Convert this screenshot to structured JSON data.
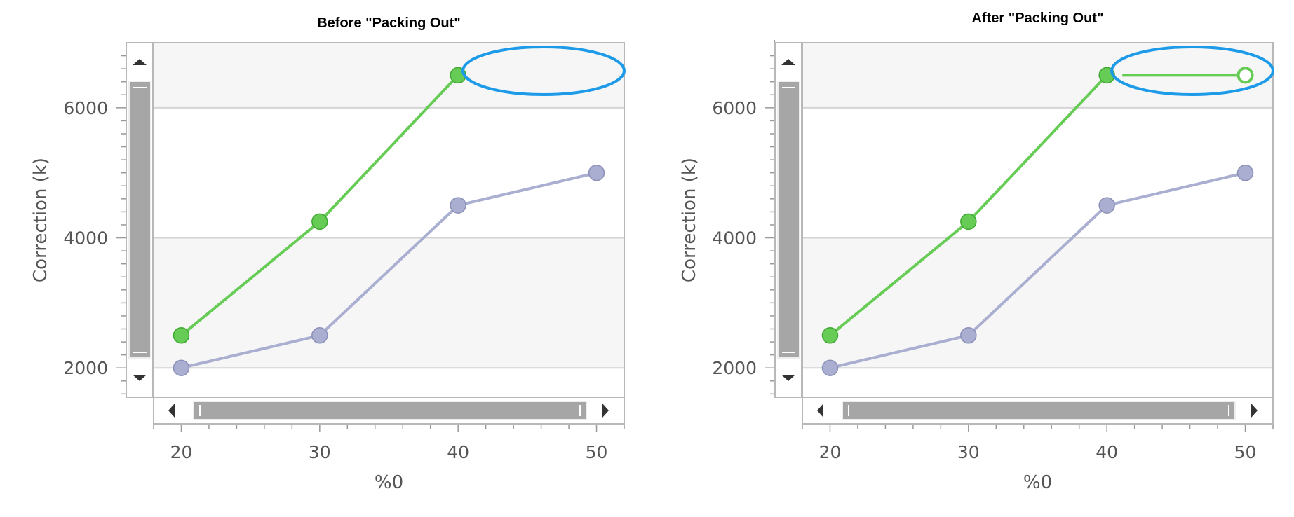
{
  "chart_data": [
    {
      "type": "line",
      "title": "Before \"Packing Out\"",
      "xlabel": "%0",
      "ylabel": "Correction (k)",
      "xlim": [
        18,
        52
      ],
      "ylim": [
        1550,
        7000
      ],
      "x_ticks": [
        20,
        30,
        40,
        50
      ],
      "y_ticks": [
        2000,
        4000,
        6000
      ],
      "grid": "horizontal",
      "series": [
        {
          "color": "#66cc55",
          "x": [
            20,
            30,
            40
          ],
          "y": [
            2500,
            4250,
            6500
          ]
        },
        {
          "color": "#aaaed0",
          "x": [
            20,
            30,
            40,
            50
          ],
          "y": [
            2000,
            2500,
            4500,
            5000
          ]
        }
      ],
      "annotation": {
        "shape": "ellipse",
        "color": "#1e9be8"
      }
    },
    {
      "type": "line",
      "title": "After \"Packing Out\"",
      "xlabel": "%0",
      "ylabel": "Correction (k)",
      "xlim": [
        18,
        52
      ],
      "ylim": [
        1550,
        7000
      ],
      "x_ticks": [
        20,
        30,
        40,
        50
      ],
      "y_ticks": [
        2000,
        4000,
        6000
      ],
      "grid": "horizontal",
      "series": [
        {
          "color": "#66cc55",
          "x": [
            20,
            30,
            40,
            50
          ],
          "y": [
            2500,
            4250,
            6500,
            6500
          ],
          "hollow_last": true
        },
        {
          "color": "#aaaed0",
          "x": [
            20,
            30,
            40,
            50
          ],
          "y": [
            2000,
            2500,
            4500,
            5000
          ]
        }
      ],
      "annotation": {
        "shape": "ellipse",
        "color": "#1e9be8"
      }
    }
  ]
}
